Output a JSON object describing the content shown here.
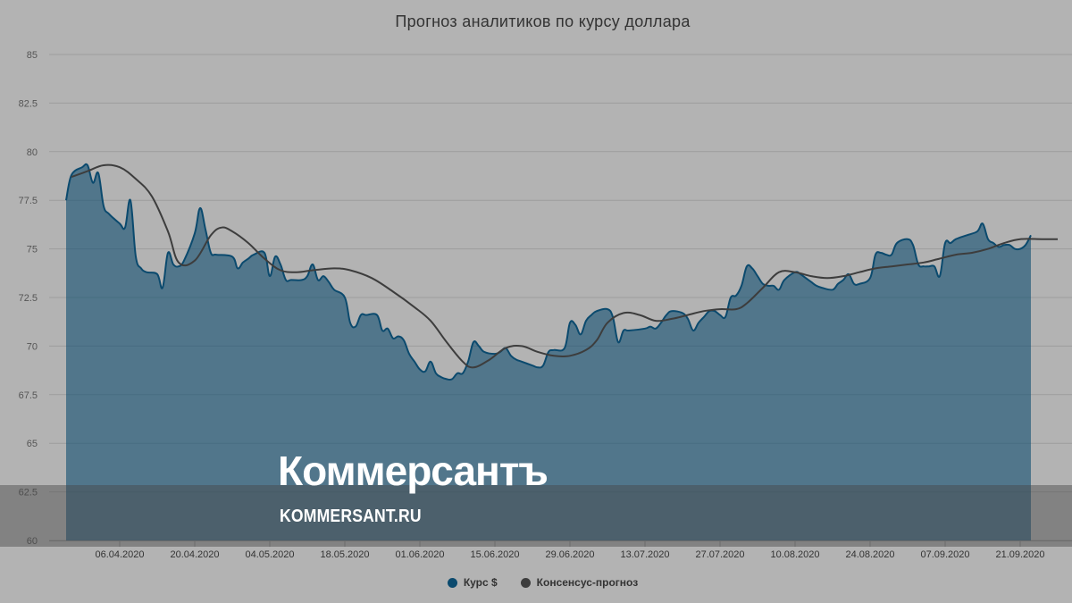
{
  "chart_data": {
    "type": "area",
    "title": "Прогноз аналитиков по курсу доллара",
    "xlabel": "",
    "ylabel": "",
    "ylim": [
      60,
      85
    ],
    "yticks": [
      "60",
      "62.5",
      "65",
      "67.5",
      "70",
      "72.5",
      "75",
      "77.5",
      "80",
      "82.5",
      "85"
    ],
    "xticks": [
      {
        "date": "2020-04-06",
        "label": "06.04.2020"
      },
      {
        "date": "2020-04-20",
        "label": "20.04.2020"
      },
      {
        "date": "2020-05-04",
        "label": "04.05.2020"
      },
      {
        "date": "2020-05-18",
        "label": "18.05.2020"
      },
      {
        "date": "2020-06-01",
        "label": "01.06.2020"
      },
      {
        "date": "2020-06-15",
        "label": "15.06.2020"
      },
      {
        "date": "2020-06-29",
        "label": "29.06.2020"
      },
      {
        "date": "2020-07-13",
        "label": "13.07.2020"
      },
      {
        "date": "2020-07-27",
        "label": "27.07.2020"
      },
      {
        "date": "2020-08-10",
        "label": "10.08.2020"
      },
      {
        "date": "2020-08-24",
        "label": "24.08.2020"
      },
      {
        "date": "2020-09-07",
        "label": "07.09.2020"
      },
      {
        "date": "2020-09-21",
        "label": "21.09.2020"
      }
    ],
    "grid": true,
    "legend_position": "bottom-center",
    "series": [
      {
        "name": "Курс $",
        "type": "area",
        "color": "#0b4a6e",
        "points": [
          [
            "2020-03-27",
            77.5
          ],
          [
            "2020-03-28",
            78.8
          ],
          [
            "2020-03-30",
            79.2
          ],
          [
            "2020-03-31",
            79.3
          ],
          [
            "2020-04-01",
            78.4
          ],
          [
            "2020-04-02",
            78.9
          ],
          [
            "2020-04-03",
            77.2
          ],
          [
            "2020-04-04",
            76.8
          ],
          [
            "2020-04-06",
            76.3
          ],
          [
            "2020-04-07",
            76.1
          ],
          [
            "2020-04-08",
            77.5
          ],
          [
            "2020-04-09",
            74.6
          ],
          [
            "2020-04-10",
            74.0
          ],
          [
            "2020-04-11",
            73.8
          ],
          [
            "2020-04-13",
            73.7
          ],
          [
            "2020-04-14",
            73.0
          ],
          [
            "2020-04-15",
            74.8
          ],
          [
            "2020-04-16",
            74.2
          ],
          [
            "2020-04-17",
            74.1
          ],
          [
            "2020-04-18",
            74.4
          ],
          [
            "2020-04-20",
            75.8
          ],
          [
            "2020-04-21",
            77.1
          ],
          [
            "2020-04-22",
            76.0
          ],
          [
            "2020-04-23",
            74.8
          ],
          [
            "2020-04-24",
            74.7
          ],
          [
            "2020-04-27",
            74.6
          ],
          [
            "2020-04-28",
            74.0
          ],
          [
            "2020-04-29",
            74.3
          ],
          [
            "2020-04-30",
            74.5
          ],
          [
            "2020-05-01",
            74.7
          ],
          [
            "2020-05-03",
            74.8
          ],
          [
            "2020-05-04",
            73.6
          ],
          [
            "2020-05-05",
            74.6
          ],
          [
            "2020-05-06",
            74.2
          ],
          [
            "2020-05-07",
            73.4
          ],
          [
            "2020-05-08",
            73.4
          ],
          [
            "2020-05-10",
            73.4
          ],
          [
            "2020-05-11",
            73.6
          ],
          [
            "2020-05-12",
            74.2
          ],
          [
            "2020-05-13",
            73.4
          ],
          [
            "2020-05-14",
            73.6
          ],
          [
            "2020-05-15",
            73.3
          ],
          [
            "2020-05-16",
            72.9
          ],
          [
            "2020-05-18",
            72.5
          ],
          [
            "2020-05-19",
            71.2
          ],
          [
            "2020-05-20",
            71.0
          ],
          [
            "2020-05-21",
            71.6
          ],
          [
            "2020-05-22",
            71.6
          ],
          [
            "2020-05-24",
            71.6
          ],
          [
            "2020-05-25",
            70.8
          ],
          [
            "2020-05-26",
            70.9
          ],
          [
            "2020-05-27",
            70.4
          ],
          [
            "2020-05-28",
            70.5
          ],
          [
            "2020-05-29",
            70.3
          ],
          [
            "2020-05-30",
            69.6
          ],
          [
            "2020-05-31",
            69.2
          ],
          [
            "2020-06-01",
            68.8
          ],
          [
            "2020-06-02",
            68.7
          ],
          [
            "2020-06-03",
            69.2
          ],
          [
            "2020-06-04",
            68.6
          ],
          [
            "2020-06-05",
            68.4
          ],
          [
            "2020-06-06",
            68.3
          ],
          [
            "2020-06-07",
            68.3
          ],
          [
            "2020-06-08",
            68.6
          ],
          [
            "2020-06-09",
            68.6
          ],
          [
            "2020-06-10",
            69.2
          ],
          [
            "2020-06-11",
            70.2
          ],
          [
            "2020-06-12",
            70.0
          ],
          [
            "2020-06-13",
            69.7
          ],
          [
            "2020-06-15",
            69.6
          ],
          [
            "2020-06-16",
            69.7
          ],
          [
            "2020-06-17",
            69.9
          ],
          [
            "2020-06-18",
            69.5
          ],
          [
            "2020-06-19",
            69.3
          ],
          [
            "2020-06-20",
            69.2
          ],
          [
            "2020-06-22",
            69.0
          ],
          [
            "2020-06-23",
            68.9
          ],
          [
            "2020-06-24",
            69.0
          ],
          [
            "2020-06-25",
            69.7
          ],
          [
            "2020-06-26",
            69.8
          ],
          [
            "2020-06-28",
            69.9
          ],
          [
            "2020-06-29",
            71.2
          ],
          [
            "2020-06-30",
            71.1
          ],
          [
            "2020-07-01",
            70.6
          ],
          [
            "2020-07-02",
            71.3
          ],
          [
            "2020-07-03",
            71.6
          ],
          [
            "2020-07-04",
            71.8
          ],
          [
            "2020-07-06",
            71.9
          ],
          [
            "2020-07-07",
            71.5
          ],
          [
            "2020-07-08",
            70.2
          ],
          [
            "2020-07-09",
            70.8
          ],
          [
            "2020-07-10",
            70.8
          ],
          [
            "2020-07-13",
            70.9
          ],
          [
            "2020-07-14",
            71.0
          ],
          [
            "2020-07-15",
            70.9
          ],
          [
            "2020-07-16",
            71.2
          ],
          [
            "2020-07-17",
            71.6
          ],
          [
            "2020-07-18",
            71.8
          ],
          [
            "2020-07-20",
            71.7
          ],
          [
            "2020-07-21",
            71.4
          ],
          [
            "2020-07-22",
            70.8
          ],
          [
            "2020-07-23",
            71.2
          ],
          [
            "2020-07-24",
            71.5
          ],
          [
            "2020-07-25",
            71.8
          ],
          [
            "2020-07-26",
            71.8
          ],
          [
            "2020-07-27",
            71.6
          ],
          [
            "2020-07-28",
            71.5
          ],
          [
            "2020-07-29",
            72.5
          ],
          [
            "2020-07-30",
            72.6
          ],
          [
            "2020-07-31",
            73.1
          ],
          [
            "2020-08-01",
            74.1
          ],
          [
            "2020-08-02",
            74.0
          ],
          [
            "2020-08-03",
            73.6
          ],
          [
            "2020-08-04",
            73.2
          ],
          [
            "2020-08-05",
            73.1
          ],
          [
            "2020-08-06",
            73.1
          ],
          [
            "2020-08-07",
            72.9
          ],
          [
            "2020-08-08",
            73.4
          ],
          [
            "2020-08-10",
            73.8
          ],
          [
            "2020-08-11",
            73.7
          ],
          [
            "2020-08-12",
            73.5
          ],
          [
            "2020-08-13",
            73.3
          ],
          [
            "2020-08-14",
            73.1
          ],
          [
            "2020-08-15",
            73.0
          ],
          [
            "2020-08-17",
            72.9
          ],
          [
            "2020-08-18",
            73.2
          ],
          [
            "2020-08-19",
            73.4
          ],
          [
            "2020-08-20",
            73.7
          ],
          [
            "2020-08-21",
            73.2
          ],
          [
            "2020-08-22",
            73.2
          ],
          [
            "2020-08-24",
            73.5
          ],
          [
            "2020-08-25",
            74.7
          ],
          [
            "2020-08-26",
            74.8
          ],
          [
            "2020-08-27",
            74.7
          ],
          [
            "2020-08-28",
            74.7
          ],
          [
            "2020-08-29",
            75.3
          ],
          [
            "2020-08-31",
            75.5
          ],
          [
            "2020-09-01",
            75.2
          ],
          [
            "2020-09-02",
            74.2
          ],
          [
            "2020-09-03",
            74.1
          ],
          [
            "2020-09-04",
            74.1
          ],
          [
            "2020-09-05",
            74.1
          ],
          [
            "2020-09-06",
            73.6
          ],
          [
            "2020-09-07",
            75.3
          ],
          [
            "2020-09-08",
            75.3
          ],
          [
            "2020-09-09",
            75.5
          ],
          [
            "2020-09-11",
            75.7
          ],
          [
            "2020-09-13",
            75.9
          ],
          [
            "2020-09-14",
            76.3
          ],
          [
            "2020-09-15",
            75.5
          ],
          [
            "2020-09-16",
            75.3
          ],
          [
            "2020-09-17",
            75.1
          ],
          [
            "2020-09-18",
            75.2
          ],
          [
            "2020-09-19",
            75.2
          ],
          [
            "2020-09-20",
            75.0
          ],
          [
            "2020-09-21",
            75.0
          ],
          [
            "2020-09-22",
            75.2
          ],
          [
            "2020-09-23",
            75.7
          ]
        ]
      },
      {
        "name": "Консенсус-прогноз",
        "type": "line",
        "color": "#3d3d3d",
        "points": [
          [
            "2020-03-28",
            78.7
          ],
          [
            "2020-03-31",
            79.0
          ],
          [
            "2020-04-03",
            79.3
          ],
          [
            "2020-04-06",
            79.2
          ],
          [
            "2020-04-09",
            78.6
          ],
          [
            "2020-04-12",
            77.7
          ],
          [
            "2020-04-15",
            75.9
          ],
          [
            "2020-04-17",
            74.3
          ],
          [
            "2020-04-20",
            74.4
          ],
          [
            "2020-04-23",
            75.7
          ],
          [
            "2020-04-25",
            76.1
          ],
          [
            "2020-04-27",
            75.9
          ],
          [
            "2020-04-30",
            75.3
          ],
          [
            "2020-05-03",
            74.5
          ],
          [
            "2020-05-06",
            73.9
          ],
          [
            "2020-05-09",
            73.8
          ],
          [
            "2020-05-12",
            73.9
          ],
          [
            "2020-05-16",
            74.0
          ],
          [
            "2020-05-19",
            73.9
          ],
          [
            "2020-05-23",
            73.5
          ],
          [
            "2020-05-27",
            72.8
          ],
          [
            "2020-05-31",
            72.0
          ],
          [
            "2020-06-03",
            71.3
          ],
          [
            "2020-06-06",
            70.2
          ],
          [
            "2020-06-09",
            69.2
          ],
          [
            "2020-06-11",
            68.9
          ],
          [
            "2020-06-14",
            69.3
          ],
          [
            "2020-06-17",
            69.9
          ],
          [
            "2020-06-20",
            70.0
          ],
          [
            "2020-06-23",
            69.7
          ],
          [
            "2020-06-26",
            69.5
          ],
          [
            "2020-06-29",
            69.5
          ],
          [
            "2020-07-02",
            69.8
          ],
          [
            "2020-07-04",
            70.3
          ],
          [
            "2020-07-06",
            71.2
          ],
          [
            "2020-07-09",
            71.7
          ],
          [
            "2020-07-12",
            71.6
          ],
          [
            "2020-07-15",
            71.3
          ],
          [
            "2020-07-18",
            71.4
          ],
          [
            "2020-07-21",
            71.6
          ],
          [
            "2020-07-24",
            71.8
          ],
          [
            "2020-07-27",
            71.9
          ],
          [
            "2020-07-30",
            71.9
          ],
          [
            "2020-08-01",
            72.2
          ],
          [
            "2020-08-04",
            73.0
          ],
          [
            "2020-08-07",
            73.8
          ],
          [
            "2020-08-10",
            73.8
          ],
          [
            "2020-08-13",
            73.6
          ],
          [
            "2020-08-16",
            73.5
          ],
          [
            "2020-08-19",
            73.6
          ],
          [
            "2020-08-22",
            73.8
          ],
          [
            "2020-08-25",
            74.0
          ],
          [
            "2020-08-28",
            74.1
          ],
          [
            "2020-08-31",
            74.2
          ],
          [
            "2020-09-03",
            74.3
          ],
          [
            "2020-09-06",
            74.5
          ],
          [
            "2020-09-09",
            74.7
          ],
          [
            "2020-09-12",
            74.8
          ],
          [
            "2020-09-15",
            75.0
          ],
          [
            "2020-09-18",
            75.3
          ],
          [
            "2020-09-21",
            75.5
          ],
          [
            "2020-09-25",
            75.5
          ],
          [
            "2020-09-28",
            75.5
          ]
        ]
      }
    ]
  },
  "watermark": {
    "logo": "Коммерсантъ",
    "url": "KOMMERSANT.RU"
  }
}
